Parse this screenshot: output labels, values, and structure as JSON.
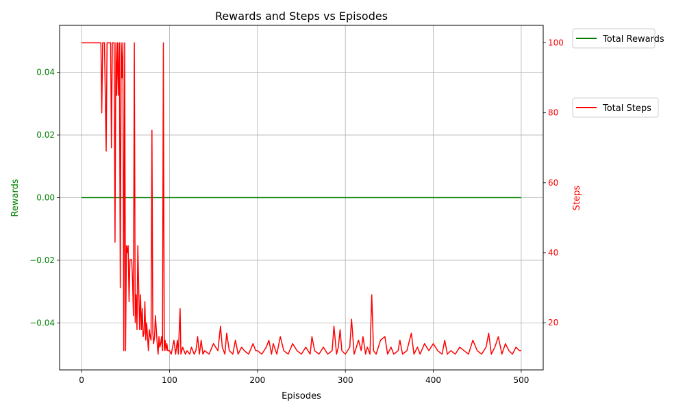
{
  "chart_data": {
    "type": "line",
    "title": "Rewards and Steps vs Episodes",
    "xlabel": "Episodes",
    "xlim": [
      -25,
      525
    ],
    "xticks": [
      0,
      100,
      200,
      300,
      400,
      500
    ],
    "xtick_labels": [
      "0",
      "100",
      "200",
      "300",
      "400",
      "500"
    ],
    "grid": true,
    "axes": {
      "left": {
        "label": "Rewards",
        "color": "#008000",
        "ylim": [
          -0.055,
          0.055
        ],
        "ticks": [
          -0.04,
          -0.02,
          0.0,
          0.02,
          0.04
        ],
        "tick_labels": [
          "−0.04",
          "−0.02",
          "0.00",
          "0.02",
          "0.04"
        ]
      },
      "right": {
        "label": "Steps",
        "color": "#ff0000",
        "ylim": [
          6.5,
          105
        ],
        "ticks": [
          20,
          40,
          60,
          80,
          100
        ],
        "tick_labels": [
          "20",
          "40",
          "60",
          "80",
          "100"
        ]
      }
    },
    "legends": [
      {
        "label": "Total Rewards",
        "color": "#008000",
        "position": "upper right, outside"
      },
      {
        "label": "Total Steps",
        "color": "#ff0000",
        "position": "right, outside"
      }
    ],
    "series": [
      {
        "name": "Total Rewards",
        "axis": "left",
        "color": "#008000",
        "points": [
          [
            0,
            0.0
          ],
          [
            500,
            0.0
          ]
        ]
      },
      {
        "name": "Total Steps",
        "axis": "right",
        "color": "#ff0000",
        "points": [
          [
            0,
            100
          ],
          [
            5,
            100
          ],
          [
            10,
            100
          ],
          [
            15,
            100
          ],
          [
            21,
            100
          ],
          [
            22,
            100
          ],
          [
            23,
            80
          ],
          [
            24,
            100
          ],
          [
            26,
            100
          ],
          [
            28,
            69
          ],
          [
            29,
            100
          ],
          [
            31,
            100
          ],
          [
            33,
            100
          ],
          [
            34,
            70
          ],
          [
            35,
            100
          ],
          [
            36,
            100
          ],
          [
            37,
            100
          ],
          [
            38,
            43
          ],
          [
            39,
            100
          ],
          [
            40,
            85
          ],
          [
            41,
            100
          ],
          [
            42,
            85
          ],
          [
            43,
            100
          ],
          [
            44,
            30
          ],
          [
            45,
            100
          ],
          [
            46,
            90
          ],
          [
            47,
            100
          ],
          [
            48,
            12
          ],
          [
            49,
            100
          ],
          [
            50,
            12
          ],
          [
            51,
            42
          ],
          [
            52,
            40
          ],
          [
            53,
            42
          ],
          [
            54,
            26
          ],
          [
            55,
            38
          ],
          [
            56,
            38
          ],
          [
            57,
            38
          ],
          [
            58,
            32
          ],
          [
            59,
            22
          ],
          [
            60,
            100
          ],
          [
            61,
            20
          ],
          [
            62,
            28
          ],
          [
            63,
            18
          ],
          [
            64,
            42
          ],
          [
            65,
            30
          ],
          [
            66,
            18
          ],
          [
            67,
            28
          ],
          [
            68,
            18
          ],
          [
            69,
            24
          ],
          [
            70,
            16
          ],
          [
            71,
            17
          ],
          [
            72,
            26
          ],
          [
            73,
            15
          ],
          [
            74,
            20
          ],
          [
            75,
            16
          ],
          [
            76,
            12
          ],
          [
            77,
            18
          ],
          [
            78,
            16
          ],
          [
            79,
            15
          ],
          [
            80,
            75
          ],
          [
            81,
            17
          ],
          [
            82,
            14
          ],
          [
            83,
            16
          ],
          [
            84,
            22
          ],
          [
            85,
            18
          ],
          [
            86,
            14
          ],
          [
            87,
            11
          ],
          [
            88,
            16
          ],
          [
            89,
            13
          ],
          [
            90,
            14
          ],
          [
            91,
            16
          ],
          [
            92,
            12
          ],
          [
            93,
            100
          ],
          [
            94,
            12
          ],
          [
            95,
            15
          ],
          [
            96,
            12
          ],
          [
            97,
            14
          ],
          [
            98,
            12
          ],
          [
            100,
            12
          ],
          [
            102,
            11
          ],
          [
            105,
            15
          ],
          [
            107,
            11
          ],
          [
            109,
            15
          ],
          [
            110,
            11
          ],
          [
            112,
            24
          ],
          [
            113,
            11
          ],
          [
            115,
            13
          ],
          [
            118,
            11
          ],
          [
            120,
            12
          ],
          [
            123,
            11
          ],
          [
            125,
            13
          ],
          [
            128,
            11
          ],
          [
            130,
            12
          ],
          [
            132,
            16
          ],
          [
            134,
            11
          ],
          [
            136,
            15
          ],
          [
            138,
            11
          ],
          [
            140,
            12
          ],
          [
            145,
            11
          ],
          [
            150,
            14
          ],
          [
            155,
            12
          ],
          [
            158,
            19
          ],
          [
            160,
            13
          ],
          [
            163,
            11
          ],
          [
            165,
            17
          ],
          [
            168,
            12
          ],
          [
            172,
            11
          ],
          [
            175,
            15
          ],
          [
            178,
            11
          ],
          [
            182,
            13
          ],
          [
            185,
            12
          ],
          [
            190,
            11
          ],
          [
            195,
            14
          ],
          [
            198,
            12
          ],
          [
            200,
            12
          ],
          [
            205,
            11
          ],
          [
            210,
            13
          ],
          [
            213,
            15
          ],
          [
            216,
            11
          ],
          [
            218,
            14
          ],
          [
            222,
            11
          ],
          [
            226,
            16
          ],
          [
            230,
            12
          ],
          [
            235,
            11
          ],
          [
            240,
            14
          ],
          [
            245,
            12
          ],
          [
            250,
            11
          ],
          [
            255,
            13
          ],
          [
            260,
            11
          ],
          [
            262,
            16
          ],
          [
            265,
            12
          ],
          [
            270,
            11
          ],
          [
            275,
            13
          ],
          [
            280,
            11
          ],
          [
            285,
            12
          ],
          [
            287,
            19
          ],
          [
            290,
            11
          ],
          [
            292,
            13
          ],
          [
            294,
            18
          ],
          [
            296,
            12
          ],
          [
            300,
            11
          ],
          [
            305,
            13
          ],
          [
            307,
            21
          ],
          [
            310,
            11
          ],
          [
            315,
            15
          ],
          [
            318,
            12
          ],
          [
            320,
            16
          ],
          [
            323,
            11
          ],
          [
            325,
            13
          ],
          [
            328,
            11
          ],
          [
            330,
            28
          ],
          [
            332,
            12
          ],
          [
            335,
            11
          ],
          [
            340,
            15
          ],
          [
            345,
            16
          ],
          [
            348,
            11
          ],
          [
            352,
            13
          ],
          [
            355,
            11
          ],
          [
            360,
            12
          ],
          [
            362,
            15
          ],
          [
            365,
            11
          ],
          [
            370,
            12
          ],
          [
            375,
            17
          ],
          [
            378,
            11
          ],
          [
            382,
            13
          ],
          [
            385,
            11
          ],
          [
            390,
            14
          ],
          [
            395,
            12
          ],
          [
            400,
            14
          ],
          [
            405,
            12
          ],
          [
            410,
            11
          ],
          [
            413,
            15
          ],
          [
            416,
            11
          ],
          [
            420,
            12
          ],
          [
            425,
            11
          ],
          [
            430,
            13
          ],
          [
            435,
            12
          ],
          [
            440,
            11
          ],
          [
            445,
            15
          ],
          [
            450,
            12
          ],
          [
            455,
            11
          ],
          [
            460,
            13
          ],
          [
            463,
            17
          ],
          [
            466,
            11
          ],
          [
            470,
            13
          ],
          [
            474,
            16
          ],
          [
            478,
            11
          ],
          [
            482,
            14
          ],
          [
            486,
            12
          ],
          [
            490,
            11
          ],
          [
            494,
            13
          ],
          [
            498,
            12
          ],
          [
            500,
            12
          ]
        ]
      }
    ]
  }
}
